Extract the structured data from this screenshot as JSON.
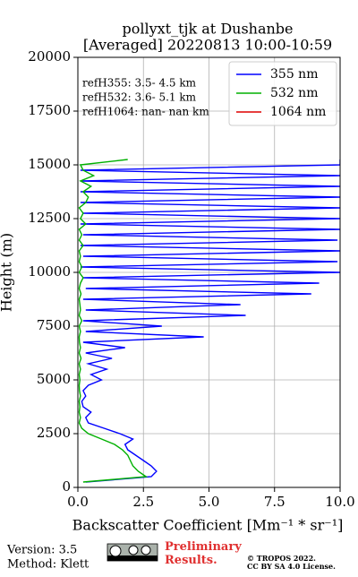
{
  "chart_data": {
    "type": "line",
    "title": "pollyxt_tjk at Dushanbe",
    "subtitle": "[Averaged] 20220813 10:00-10:59",
    "x_label": "Backscatter Coefficient [Mm⁻¹ * sr⁻¹]",
    "y_label": "Height (m)",
    "annotations": [
      "refH355:  3.5- 4.5 km",
      "refH532:  3.6- 5.1 km",
      "refH1064:  nan- nan km"
    ],
    "footer": {
      "version": "Version: 3.5",
      "method": "Method: Klett",
      "preliminary": "Preliminary Results.",
      "copyright": "© TROPOS 2022.",
      "license": "CC BY SA 4.0 License."
    },
    "xlim": [
      0,
      10
    ],
    "ylim": [
      0,
      20000
    ],
    "xticks": [
      {
        "value": 0,
        "label": "0.0"
      },
      2.5,
      {
        "value": 5,
        "label": "5.0"
      },
      7.5,
      {
        "value": 10,
        "label": "10.0"
      }
    ],
    "yticks": [
      0,
      2500,
      5000,
      7500,
      10000,
      12500,
      15000,
      17500,
      20000
    ],
    "grid": true,
    "legend": "upper right",
    "y": [
      250,
      500,
      750,
      1000,
      1250,
      1500,
      1750,
      2000,
      2250,
      2500,
      2750,
      3000,
      3250,
      3500,
      3750,
      4000,
      4250,
      4500,
      4750,
      5000,
      5250,
      5500,
      5750,
      6000,
      6250,
      6500,
      6750,
      7000,
      7250,
      7500,
      7750,
      8000,
      8250,
      8500,
      8750,
      9000,
      9250,
      9500,
      9750,
      10000,
      10250,
      10500,
      10750,
      11000,
      11250,
      11500,
      11750,
      12000,
      12250,
      12500,
      12750,
      13000,
      13250,
      13500,
      13750,
      14000,
      14250,
      14500,
      14750,
      15000,
      15250
    ],
    "series": [
      {
        "name": "355 nm",
        "color": "#0000ff",
        "values": [
          0.3,
          2.8,
          3.0,
          2.8,
          2.5,
          2.2,
          1.9,
          1.8,
          2.1,
          1.6,
          1.0,
          0.4,
          0.3,
          0.5,
          0.2,
          0.15,
          0.3,
          0.2,
          0.4,
          0.9,
          0.5,
          1.1,
          0.4,
          1.3,
          0.3,
          1.8,
          0.2,
          4.8,
          0.3,
          3.2,
          0.2,
          6.4,
          0.3,
          6.2,
          0.2,
          8.9,
          0.3,
          9.2,
          0.2,
          10,
          0.1,
          9.9,
          0.2,
          10,
          0.1,
          9.9,
          0.2,
          10,
          0.1,
          10,
          0.2,
          10,
          0.1,
          10,
          0.1,
          10,
          0.1,
          10,
          0.1,
          10,
          10
        ]
      },
      {
        "name": "532 nm",
        "color": "#00b000",
        "values": [
          0.2,
          2.6,
          2.3,
          2.1,
          2.0,
          1.9,
          1.7,
          1.4,
          0.9,
          0.4,
          0.15,
          0.05,
          0.1,
          0.05,
          0.08,
          0.05,
          0.1,
          0.06,
          0.05,
          0.08,
          0.05,
          0.1,
          0.05,
          0.12,
          0.05,
          0.1,
          0.06,
          0.05,
          0.1,
          0.05,
          0.15,
          0.05,
          0.1,
          0.08,
          0.05,
          0.12,
          0.05,
          0.1,
          0.2,
          0.05,
          0.15,
          0.05,
          0.1,
          0.05,
          0.2,
          0.05,
          0.15,
          0.05,
          0.3,
          0.1,
          0.2,
          0.05,
          0.3,
          0.4,
          0.2,
          0.5,
          0.1,
          0.6,
          0.2,
          0.1,
          1.9
        ]
      },
      {
        "name": "1064 nm",
        "color": "#e00000",
        "values": [
          null,
          null,
          null,
          null,
          null,
          null,
          null,
          null,
          null,
          null,
          null,
          null,
          null,
          null,
          null,
          null,
          null,
          null,
          null,
          null,
          null,
          null,
          null,
          null,
          null,
          null,
          null,
          null,
          null,
          null,
          null,
          null,
          null,
          null,
          null,
          null,
          null,
          null,
          null,
          null,
          null,
          null,
          null,
          null,
          null,
          null,
          null,
          null,
          null,
          null,
          null,
          null,
          null,
          null,
          null,
          null,
          null,
          null,
          null,
          null,
          null
        ]
      }
    ]
  }
}
